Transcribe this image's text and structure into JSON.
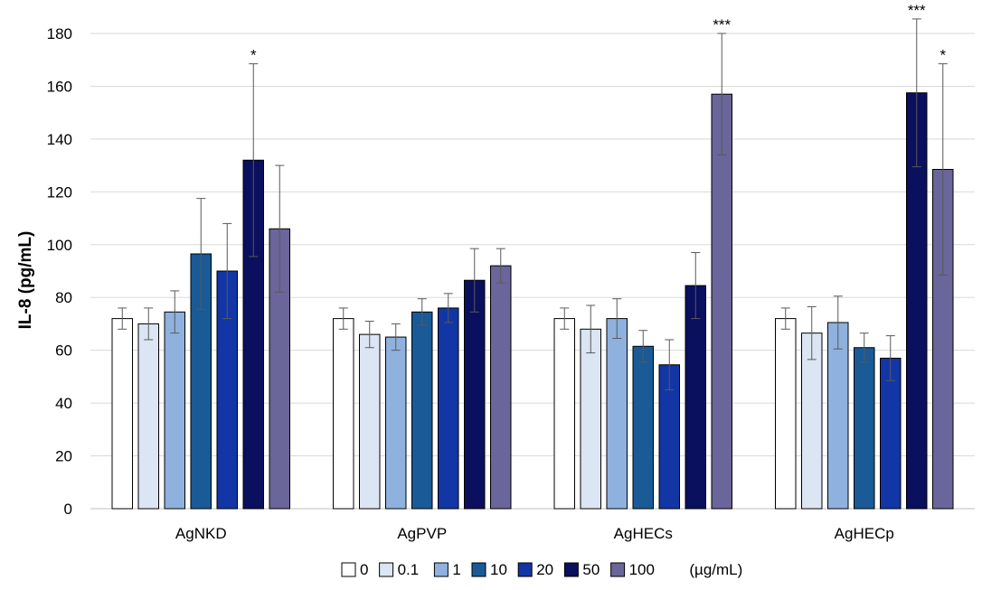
{
  "chart_data": {
    "type": "bar",
    "title": "",
    "xlabel": "",
    "ylabel": "IL-8  (pg/mL)",
    "ylim": [
      0,
      180
    ],
    "yticks": [
      0,
      20,
      40,
      60,
      80,
      100,
      120,
      140,
      160,
      180
    ],
    "grid": true,
    "legend_position": "bottom",
    "legend_unit": "(µg/mL)",
    "categories": [
      "AgNKD",
      "AgPVP",
      "AgHECs",
      "AgHECp"
    ],
    "series": [
      {
        "name": "0",
        "color": "#ffffff",
        "values": [
          72,
          72,
          72,
          72
        ],
        "errors": [
          4,
          4,
          4,
          4
        ],
        "significance": [
          "",
          "",
          "",
          ""
        ]
      },
      {
        "name": "0.1",
        "color": "#dbe5f3",
        "values": [
          70,
          66,
          68,
          66.5
        ],
        "errors": [
          6,
          5,
          9,
          10
        ],
        "significance": [
          "",
          "",
          "",
          ""
        ]
      },
      {
        "name": "1",
        "color": "#8fb1de",
        "values": [
          74.5,
          65,
          72,
          70.5
        ],
        "errors": [
          8,
          5,
          7.5,
          10
        ],
        "significance": [
          "",
          "",
          "",
          ""
        ]
      },
      {
        "name": "10",
        "color": "#1a5a96",
        "values": [
          96.5,
          74.5,
          61.5,
          61
        ],
        "errors": [
          21,
          5,
          6,
          5.5
        ],
        "significance": [
          "",
          "",
          "",
          ""
        ]
      },
      {
        "name": "20",
        "color": "#1236a6",
        "values": [
          90,
          76,
          54.5,
          57
        ],
        "errors": [
          18,
          5.5,
          9.5,
          8.5
        ],
        "significance": [
          "",
          "",
          "",
          ""
        ]
      },
      {
        "name": "50",
        "color": "#0a0f5e",
        "values": [
          132,
          86.5,
          84.5,
          157.5
        ],
        "errors": [
          36.5,
          12,
          12.5,
          28
        ],
        "significance": [
          "*",
          "",
          "",
          "***"
        ]
      },
      {
        "name": "100",
        "color": "#6a659a",
        "values": [
          106,
          92,
          157,
          128.5
        ],
        "errors": [
          24,
          6.5,
          23,
          40
        ],
        "significance": [
          "",
          "",
          "***",
          "*"
        ]
      }
    ]
  }
}
